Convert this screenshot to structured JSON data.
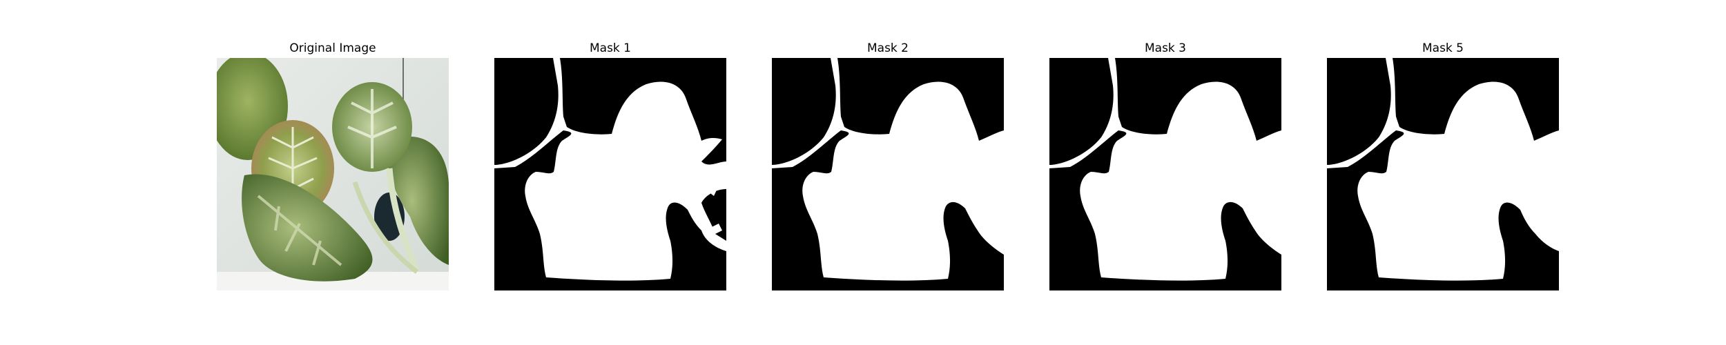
{
  "panels": [
    {
      "title": "Original Image",
      "kind": "photo",
      "description_icon": "leafy-plant-photo"
    },
    {
      "title": "Mask 1",
      "kind": "mask",
      "variant": "1"
    },
    {
      "title": "Mask 2",
      "kind": "mask",
      "variant": "2"
    },
    {
      "title": "Mask 3",
      "kind": "mask",
      "variant": "3"
    },
    {
      "title": "Mask 5",
      "kind": "mask",
      "variant": "5"
    }
  ],
  "colors": {
    "background": "#ffffff",
    "mask_background": "#000000",
    "mask_foreground": "#ffffff",
    "leaf_dark": "#5a7a2e",
    "leaf_light": "#b8c98a",
    "leaf_reddish": "#b07a5a",
    "photo_bg": "#dfe4df"
  }
}
